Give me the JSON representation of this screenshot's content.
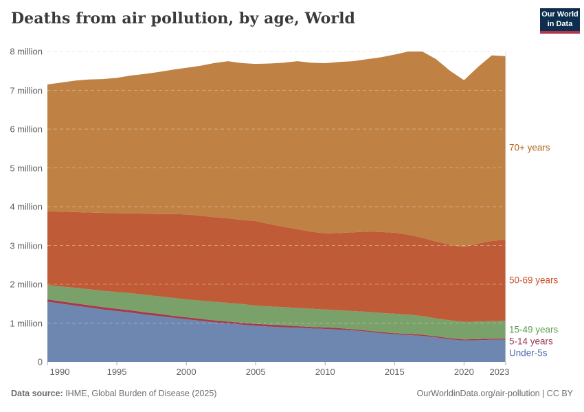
{
  "header": {
    "title": "Deaths from air pollution, by age, World",
    "logo_line1": "Our World",
    "logo_line2": "in Data",
    "logo_bg_color": "#0d2e4e",
    "logo_bar_color": "#b5344a"
  },
  "footer": {
    "source_label": "Data source:",
    "source_text": " IHME, Global Burden of Disease (2025)",
    "right_text": "OurWorldinData.org/air-pollution | CC BY"
  },
  "chart_data": {
    "type": "area",
    "stacked": true,
    "title": "Deaths from air pollution, by age, World",
    "xlabel": "",
    "ylabel": "",
    "unit": "million deaths",
    "ylim": [
      0,
      8
    ],
    "grid": true,
    "legend_position": "right-edge-labels",
    "x": [
      1990,
      1991,
      1992,
      1993,
      1994,
      1995,
      1996,
      1997,
      1998,
      1999,
      2000,
      2001,
      2002,
      2003,
      2004,
      2005,
      2006,
      2007,
      2008,
      2009,
      2010,
      2011,
      2012,
      2013,
      2014,
      2015,
      2016,
      2017,
      2018,
      2019,
      2020,
      2021,
      2022,
      2023
    ],
    "x_ticks": [
      1990,
      1995,
      2000,
      2005,
      2010,
      2015,
      2020,
      2023
    ],
    "y_ticks": [
      {
        "value": 0,
        "label": "0"
      },
      {
        "value": 1,
        "label": "1 million"
      },
      {
        "value": 2,
        "label": "2 million"
      },
      {
        "value": 3,
        "label": "3 million"
      },
      {
        "value": 4,
        "label": "4 million"
      },
      {
        "value": 5,
        "label": "5 million"
      },
      {
        "value": 6,
        "label": "6 million"
      },
      {
        "value": 7,
        "label": "7 million"
      },
      {
        "value": 8,
        "label": "8 million"
      }
    ],
    "series": [
      {
        "name": "Under-5s",
        "fill_color": "#6e87b0",
        "label_color": "#4c6cb0",
        "values": [
          1.55,
          1.5,
          1.45,
          1.4,
          1.35,
          1.31,
          1.27,
          1.22,
          1.18,
          1.14,
          1.1,
          1.06,
          1.02,
          0.99,
          0.96,
          0.93,
          0.91,
          0.89,
          0.88,
          0.86,
          0.85,
          0.83,
          0.81,
          0.78,
          0.74,
          0.71,
          0.69,
          0.67,
          0.63,
          0.58,
          0.55,
          0.56,
          0.57,
          0.57
        ]
      },
      {
        "name": "5-14 years",
        "fill_color": "#a33b4d",
        "label_color": "#9e3a52",
        "values": [
          0.06,
          0.06,
          0.06,
          0.06,
          0.06,
          0.06,
          0.06,
          0.06,
          0.06,
          0.05,
          0.05,
          0.05,
          0.05,
          0.05,
          0.05,
          0.05,
          0.05,
          0.05,
          0.04,
          0.04,
          0.04,
          0.04,
          0.03,
          0.03,
          0.03,
          0.03,
          0.03,
          0.03,
          0.03,
          0.03,
          0.03,
          0.03,
          0.03,
          0.03
        ]
      },
      {
        "name": "15-49 years",
        "fill_color": "#7aa16a",
        "label_color": "#5f9c52",
        "values": [
          0.37,
          0.38,
          0.4,
          0.41,
          0.42,
          0.43,
          0.44,
          0.45,
          0.45,
          0.46,
          0.46,
          0.47,
          0.48,
          0.48,
          0.48,
          0.47,
          0.47,
          0.47,
          0.47,
          0.47,
          0.46,
          0.46,
          0.47,
          0.48,
          0.49,
          0.5,
          0.5,
          0.48,
          0.46,
          0.46,
          0.45,
          0.45,
          0.45,
          0.46
        ]
      },
      {
        "name": "50-69 years",
        "fill_color": "#c05b38",
        "label_color": "#c94f29",
        "values": [
          1.9,
          1.93,
          1.95,
          1.98,
          2.01,
          2.03,
          2.06,
          2.09,
          2.12,
          2.16,
          2.19,
          2.19,
          2.18,
          2.18,
          2.17,
          2.18,
          2.12,
          2.07,
          2.03,
          1.99,
          1.96,
          1.99,
          2.03,
          2.07,
          2.09,
          2.09,
          2.06,
          2.02,
          1.98,
          1.95,
          1.93,
          2.01,
          2.07,
          2.09
        ]
      },
      {
        "name": "70+ years",
        "fill_color": "#bf8144",
        "label_color": "#ad661c",
        "values": [
          3.27,
          3.33,
          3.39,
          3.43,
          3.45,
          3.49,
          3.55,
          3.6,
          3.66,
          3.72,
          3.78,
          3.86,
          3.97,
          4.05,
          4.04,
          4.05,
          4.14,
          4.23,
          4.33,
          4.35,
          4.39,
          4.41,
          4.41,
          4.44,
          4.5,
          4.59,
          4.72,
          4.8,
          4.7,
          4.48,
          4.3,
          4.55,
          4.78,
          4.73
        ]
      }
    ]
  }
}
